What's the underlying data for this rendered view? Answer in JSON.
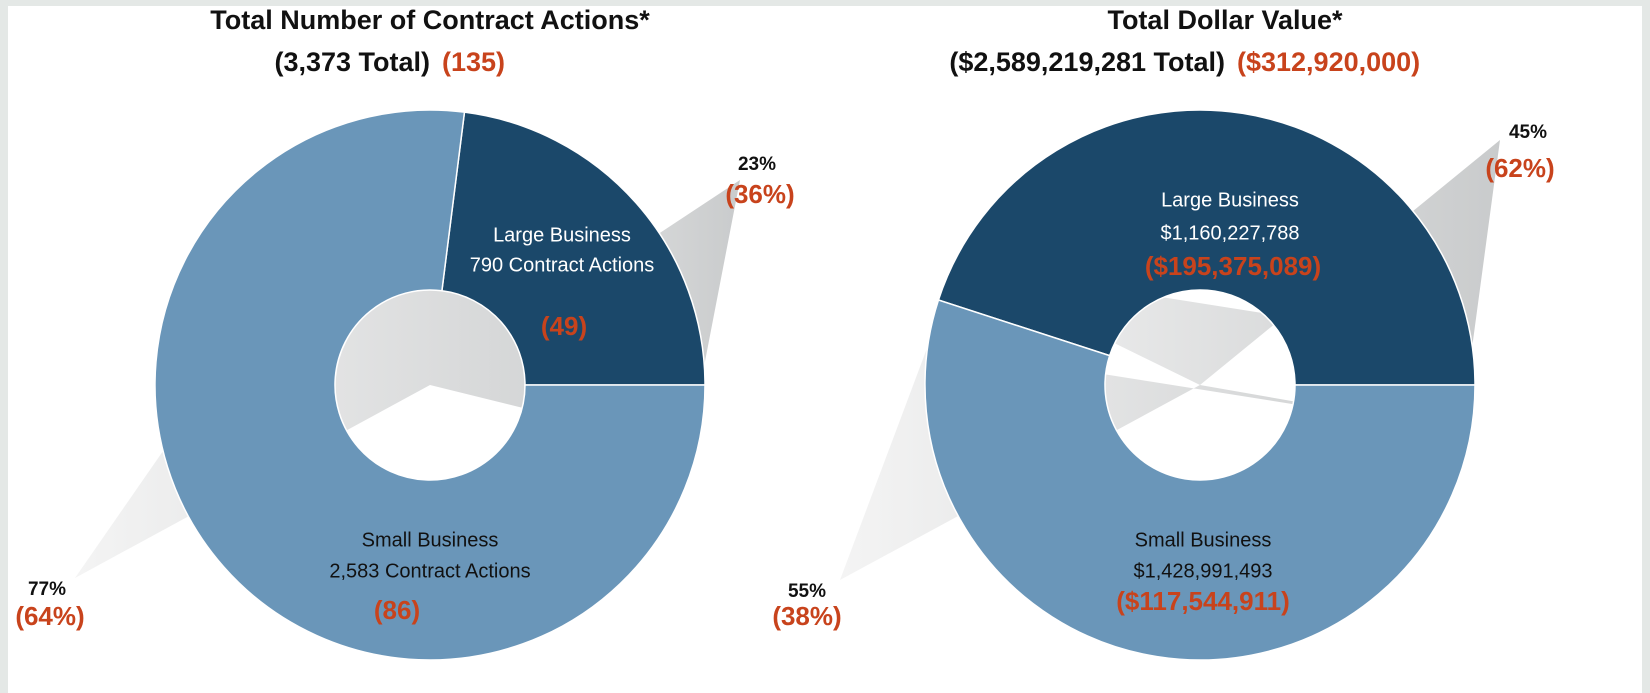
{
  "chart_data": [
    {
      "type": "donut",
      "title": "Total Number of Contract Actions*",
      "subtitle": "(3,373 Total)",
      "subtitle_highlight": "(135)",
      "categories": [
        "Large Business",
        "Small Business"
      ],
      "values": [
        23,
        77
      ],
      "value_labels": [
        "23%",
        "77%"
      ],
      "details": [
        "790 Contract Actions",
        "2,583 Contract Actions"
      ],
      "highlight_values": [
        "(49)",
        "(86)"
      ],
      "highlight_percents": [
        "(36%)",
        "(64%)"
      ],
      "colors": [
        "#1b486a",
        "#6a96b9"
      ]
    },
    {
      "type": "donut",
      "title": "Total Dollar Value*",
      "subtitle": "($2,589,219,281 Total)",
      "subtitle_highlight": "($312,920,000)",
      "categories": [
        "Large Business",
        "Small Business"
      ],
      "values": [
        45,
        55
      ],
      "value_labels": [
        "45%",
        "55%"
      ],
      "details": [
        "$1,160,227,788",
        "$1,428,991,493"
      ],
      "highlight_values": [
        "($195,375,089)",
        "($117,544,911)"
      ],
      "highlight_percents": [
        "(62%)",
        "(38%)"
      ],
      "colors": [
        "#1b486a",
        "#6a96b9"
      ]
    }
  ]
}
